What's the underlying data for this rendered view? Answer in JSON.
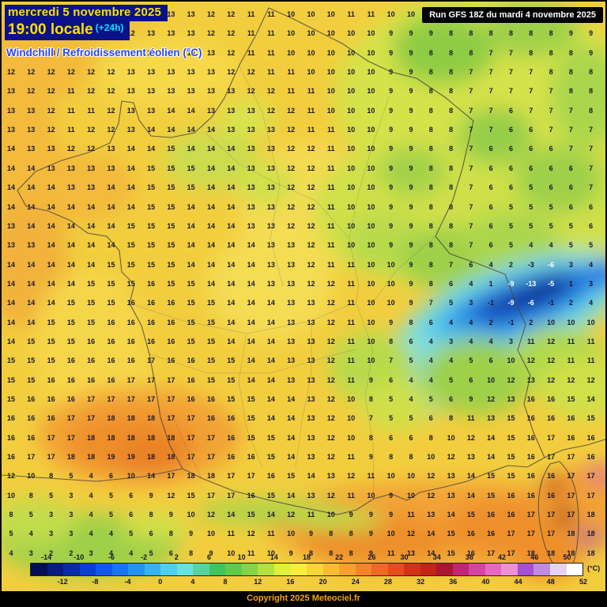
{
  "header": {
    "date_line": "mercredi 5 novembre 2025",
    "time_line": "19:00 locale",
    "offset": "(+24h)",
    "variable_label": "Windchill / Refroidissement éolien (°C)"
  },
  "run_info": "Run GFS 18Z du mardi 4 novembre 2025",
  "copyright": "Copyright 2025 Meteociel.fr",
  "colors": {
    "header_bg": "#0b1287",
    "header_text": "#ffe000",
    "offset_text": "#00e4ff",
    "variable_text": "#2a46f0",
    "base_field": "#f2ce3e",
    "copyright_text": "#f5a400"
  },
  "scale": {
    "unit": "(°C)",
    "labels_top": [
      "-14",
      "-10",
      "-6",
      "-2",
      "2",
      "6",
      "10",
      "14",
      "18",
      "22",
      "26",
      "30",
      "34",
      "38",
      "42",
      "46",
      "50"
    ],
    "labels_bottom": [
      "-12",
      "-8",
      "-4",
      "0",
      "4",
      "8",
      "12",
      "16",
      "20",
      "24",
      "28",
      "32",
      "36",
      "40",
      "44",
      "48",
      "52"
    ],
    "colors": [
      "#040e52",
      "#071c7e",
      "#0a2aaa",
      "#0d3ed2",
      "#1158e8",
      "#1874f0",
      "#2392f2",
      "#35b2f0",
      "#4cd0ec",
      "#68e2de",
      "#57d49e",
      "#3fc45e",
      "#5ecb4a",
      "#84d443",
      "#b2e13e",
      "#e0ee3c",
      "#f8ee3a",
      "#f9d634",
      "#f9bc30",
      "#f8a02b",
      "#f68426",
      "#f16821",
      "#e74c1c",
      "#d43217",
      "#c32414",
      "#ad1430",
      "#c22578",
      "#d843a2",
      "#e766c2",
      "#ef8fd4",
      "#a64fd2",
      "#c08ae0",
      "#e6d2f2",
      "#ffffff"
    ]
  },
  "map": {
    "grid_rows": [
      "12 13 12 12 11 11 12 12 13 13 12 12 11 11 10 10 10 11 11 10 10 9 9 9 9 9 8 9 9 9",
      "12 13 13 12 12 12 12 13 13 13 12 12 11 11 10 10 10 10 10 9 9 9 8 8 8 8 8 8 9 9",
      "12 12 13 12 12 12 12 13 13 13 13 12 11 11 10 10 10 10 10 9 9 8 8 8 7 7 8 8 8 9",
      "12 12 12 12 12 12 13 13 13 13 13 12 12 11 11 10 10 10 10 9 9 8 8 7 7 7 7 8 8 8",
      "13 12 12 11 12 12 13 13 13 13 13 13 12 12 11 11 10 10 10 9 9 8 8 7 7 7 7 7 8 8",
      "13 13 12 11 11 12 13 13 14 14 13 13 13 12 12 11 10 10 10 9 9 8 8 7 7 6 7 7 7 8",
      "13 13 12 11 12 12 13 14 14 14 14 13 13 13 12 11 11 10 10 9 9 8 8 7 7 6 6 7 7 7",
      "14 13 13 12 12 13 14 14 15 14 14 14 13 13 12 12 11 10 10 9 9 8 8 7 6 6 6 6 7 7",
      "14 14 13 13 13 13 14 15 15 15 14 14 13 13 12 12 11 10 10 9 9 8 8 7 6 6 6 6 6 7",
      "14 14 14 13 13 14 14 15 15 15 14 14 13 13 12 12 11 10 10 9 9 8 8 7 6 6 5 6 6 7",
      "14 14 14 14 14 14 14 15 15 14 14 14 13 13 12 12 11 10 10 9 9 8 8 7 6 5 5 5 6 6",
      "13 14 14 14 14 14 15 15 15 14 14 14 13 13 12 12 11 10 10 9 9 8 8 7 6 5 5 5 5 6",
      "13 13 14 14 14 14 15 15 15 14 14 14 14 13 13 12 11 10 10 9 9 8 8 7 6 5 4 4 5 5",
      "14 14 14 14 14 15 15 15 15 14 14 14 14 13 13 12 11 11 10 10 9 8 7 6 4 2 -3 -6 3 4",
      "14 14 14 14 15 15 15 16 15 15 14 14 14 13 13 12 12 11 10 10 9 8 6 4 1 -9 -13 -5 1 3",
      "14 14 14 15 15 15 16 16 16 15 15 14 14 14 13 13 12 11 10 10 9 7 5 3 -1 -9 -6 -1 2 4",
      "14 14 15 15 15 16 16 16 16 15 15 14 14 14 13 13 12 11 10 9 8 6 4 4 2 -1 2 10 10 10",
      "14 15 15 15 16 16 16 16 16 15 15 14 14 14 13 13 12 11 10 8 6 4 3 4 4 3 11 12 11 11",
      "15 15 15 16 16 16 16 17 16 16 15 15 14 14 13 13 12 11 10 7 5 4 4 5 6 10 12 12 11 11",
      "15 15 16 16 16 16 17 17 17 16 15 15 14 14 13 13 12 11 9 6 4 4 5 6 10 12 13 12 12 12",
      "15 16 16 16 17 17 17 17 17 16 16 15 15 14 14 13 12 10 8 5 4 5 6 9 12 13 16 16 15 14",
      "16 16 16 17 17 18 18 18 17 17 16 16 15 14 14 13 12 10 7 5 5 6 8 11 13 15 16 16 16 15",
      "16 16 17 17 18 18 18 18 18 17 17 16 15 15 14 13 12 10 8 6 6 8 10 12 14 15 16 17 16 16",
      "16 17 17 18 18 19 19 18 18 17 17 16 16 15 14 13 12 11 9 8 8 10 12 13 14 15 16 17 17 16",
      "12 10 8 5 4 6 10 14 17 18 18 17 17 16 15 14 13 12 11 10 10 12 13 14 15 15 16 16 17 17",
      "10 8 5 3 4 5 6 9 12 15 17 17 16 15 14 13 12 11 10 9 10 12 13 14 15 16 16 16 17 17",
      "8 5 3 3 4 5 6 8 9 10 12 14 15 14 12 11 10 9 9 9 11 13 14 15 16 16 17 17 17 18",
      "5 4 3 3 4 4 5 6 8 9 10 11 12 11 10 9 8 8 9 10 12 14 15 16 16 17 17 17 18 18",
      "4 3 2 2 3 4 4 5 6 8 9 10 11 10 9 8 8 8 9 11 13 14 15 16 17 17 18 18 18 18"
    ]
  }
}
